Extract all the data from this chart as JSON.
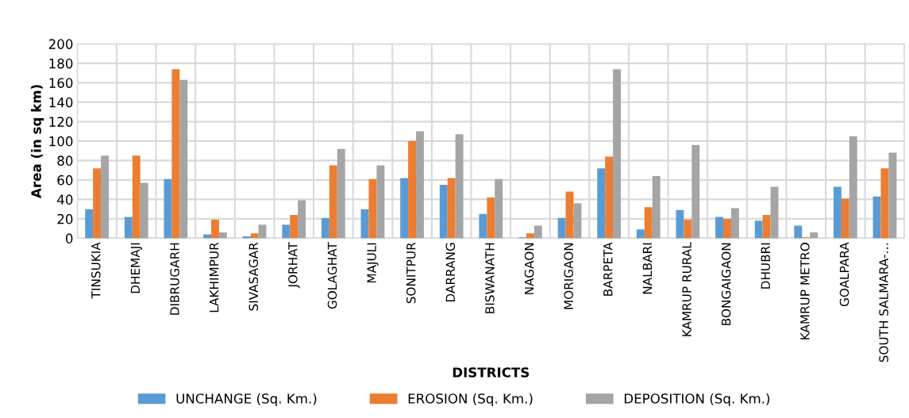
{
  "chart_data": {
    "type": "bar",
    "xlabel": "DISTRICTS",
    "ylabel": "Area (in sq km)",
    "categories": [
      "TINSUKIA",
      "DHEMAJI",
      "DIBRUGARH",
      "LAKHIMPUR",
      "SIVASAGAR",
      "JORHAT",
      "GOLAGHAT",
      "MAJULI",
      "SONITPUR",
      "DARRANG",
      "BISWANATH",
      "NAGAON",
      "MORIGAON",
      "BARPETA",
      "NALBARI",
      "KAMRUP RURAL",
      "BONGAIGAON",
      "DHUBRI",
      "KAMRUP METRO",
      "GOALPARA",
      "SOUTH SALMARA-…"
    ],
    "series": [
      {
        "name": "UNCHANGE (Sq. Km.)",
        "color": "#5b9bd5",
        "values": [
          30,
          22,
          61,
          4,
          2,
          14,
          21,
          30,
          62,
          55,
          25,
          1,
          21,
          72,
          9,
          29,
          22,
          18,
          13,
          53,
          43
        ]
      },
      {
        "name": "EROSION (Sq. Km.)",
        "color": "#ed7d31",
        "values": [
          72,
          85,
          174,
          19,
          5,
          24,
          75,
          61,
          100,
          62,
          42,
          5,
          48,
          84,
          32,
          19,
          20,
          24,
          1,
          41,
          72
        ]
      },
      {
        "name": "DEPOSITION (Sq. Km.)",
        "color": "#a5a5a5",
        "values": [
          85,
          57,
          163,
          6,
          14,
          39,
          92,
          75,
          110,
          107,
          61,
          13,
          36,
          174,
          64,
          96,
          31,
          53,
          6,
          105,
          88
        ]
      }
    ],
    "ylim": [
      0,
      200
    ],
    "yticks": [
      0,
      20,
      40,
      60,
      80,
      100,
      120,
      140,
      160,
      180,
      200
    ],
    "grid": true,
    "legend": "bottom"
  }
}
